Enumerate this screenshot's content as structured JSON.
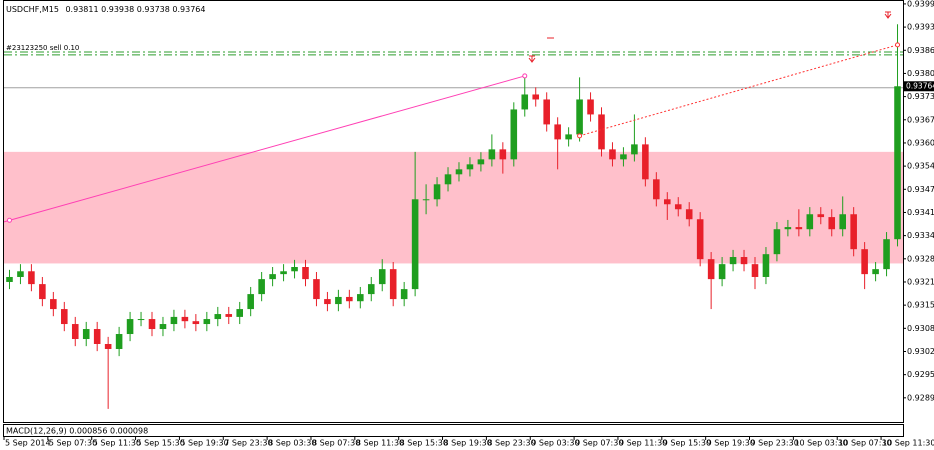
{
  "chart_data": {
    "type": "candlestick",
    "symbol": "USDCHF,M15",
    "header_values": [
      0.93811,
      0.93938,
      0.93738,
      0.93764
    ],
    "x": [
      "5 Sep 2014",
      "5 Sep 07:30",
      "5 Sep 11:30",
      "5 Sep 15:30",
      "5 Sep 19:30",
      "7 Sep 23:30",
      "8 Sep 03:30",
      "8 Sep 07:30",
      "8 Sep 11:30",
      "8 Sep 15:30",
      "8 Sep 19:30",
      "8 Sep 23:30",
      "9 Sep 03:30",
      "9 Sep 07:30",
      "9 Sep 11:30",
      "9 Sep 15:30",
      "9 Sep 19:30",
      "9 Sep 23:30",
      "10 Sep 03:30",
      "10 Sep 07:30",
      "10 Sep 11:30"
    ],
    "candles": [
      [
        0.93215,
        0.93249,
        0.93195,
        0.93229
      ],
      [
        0.93229,
        0.93265,
        0.93209,
        0.93245
      ],
      [
        0.93245,
        0.93265,
        0.93189,
        0.93209
      ],
      [
        0.93209,
        0.93229,
        0.93147,
        0.93167
      ],
      [
        0.93167,
        0.93187,
        0.93119,
        0.93139
      ],
      [
        0.93139,
        0.93159,
        0.93077,
        0.93097
      ],
      [
        0.93097,
        0.93117,
        0.93035,
        0.93055
      ],
      [
        0.93055,
        0.93103,
        0.93035,
        0.93083
      ],
      [
        0.93083,
        0.93103,
        0.93021,
        0.93041
      ],
      [
        0.93041,
        0.93061,
        0.92859,
        0.93027
      ],
      [
        0.93027,
        0.93089,
        0.93007,
        0.93069
      ],
      [
        0.93069,
        0.93131,
        0.93049,
        0.93111
      ],
      [
        0.93111,
        0.93131,
        0.93091,
        0.93111
      ],
      [
        0.93111,
        0.93131,
        0.93063,
        0.93083
      ],
      [
        0.93083,
        0.93117,
        0.93063,
        0.93097
      ],
      [
        0.93097,
        0.93137,
        0.93077,
        0.93117
      ],
      [
        0.93117,
        0.93137,
        0.93085,
        0.93105
      ],
      [
        0.93105,
        0.93125,
        0.93077,
        0.93097
      ],
      [
        0.93097,
        0.93131,
        0.93077,
        0.93111
      ],
      [
        0.93111,
        0.93145,
        0.93091,
        0.93125
      ],
      [
        0.93125,
        0.93145,
        0.93097,
        0.93117
      ],
      [
        0.93117,
        0.93159,
        0.93097,
        0.93139
      ],
      [
        0.93139,
        0.93201,
        0.93119,
        0.93181
      ],
      [
        0.93181,
        0.93243,
        0.93161,
        0.93223
      ],
      [
        0.93223,
        0.93257,
        0.93203,
        0.93237
      ],
      [
        0.93237,
        0.93265,
        0.93217,
        0.93245
      ],
      [
        0.93245,
        0.93277,
        0.93225,
        0.93257
      ],
      [
        0.93257,
        0.93277,
        0.93203,
        0.93223
      ],
      [
        0.93223,
        0.93243,
        0.93147,
        0.93167
      ],
      [
        0.93167,
        0.93187,
        0.93133,
        0.93153
      ],
      [
        0.93153,
        0.93193,
        0.93133,
        0.93173
      ],
      [
        0.93173,
        0.93193,
        0.93141,
        0.93161
      ],
      [
        0.93161,
        0.93201,
        0.93141,
        0.93181
      ],
      [
        0.93181,
        0.93229,
        0.93161,
        0.93209
      ],
      [
        0.93209,
        0.93279,
        0.93189,
        0.93251
      ],
      [
        0.93251,
        0.93271,
        0.93147,
        0.93167
      ],
      [
        0.93167,
        0.93215,
        0.93147,
        0.93195
      ],
      [
        0.93195,
        0.9358,
        0.93175,
        0.93447
      ],
      [
        0.93447,
        0.93489,
        0.93405,
        0.93447
      ],
      [
        0.93447,
        0.93509,
        0.93427,
        0.93489
      ],
      [
        0.93489,
        0.93537,
        0.93469,
        0.93517
      ],
      [
        0.93517,
        0.93551,
        0.93497,
        0.93531
      ],
      [
        0.93531,
        0.93565,
        0.93511,
        0.93545
      ],
      [
        0.93545,
        0.93579,
        0.93525,
        0.93559
      ],
      [
        0.93559,
        0.93629,
        0.93539,
        0.93587
      ],
      [
        0.93587,
        0.93607,
        0.93519,
        0.93559
      ],
      [
        0.93559,
        0.93719,
        0.93539,
        0.93699
      ],
      [
        0.93699,
        0.93797,
        0.93679,
        0.93741
      ],
      [
        0.93741,
        0.93761,
        0.93707,
        0.93727
      ],
      [
        0.93727,
        0.93747,
        0.93637,
        0.93657
      ],
      [
        0.93657,
        0.93677,
        0.93531,
        0.93615
      ],
      [
        0.93615,
        0.93649,
        0.93595,
        0.93629
      ],
      [
        0.93629,
        0.93789,
        0.93609,
        0.93727
      ],
      [
        0.93727,
        0.93747,
        0.93665,
        0.93685
      ],
      [
        0.93685,
        0.93705,
        0.93567,
        0.93587
      ],
      [
        0.93587,
        0.93607,
        0.93539,
        0.93559
      ],
      [
        0.93559,
        0.93593,
        0.93539,
        0.93573
      ],
      [
        0.93573,
        0.93685,
        0.93553,
        0.93601
      ],
      [
        0.93601,
        0.93621,
        0.93483,
        0.93503
      ],
      [
        0.93503,
        0.93523,
        0.93427,
        0.93447
      ],
      [
        0.93447,
        0.93467,
        0.93389,
        0.93433
      ],
      [
        0.93433,
        0.93453,
        0.93399,
        0.93419
      ],
      [
        0.93419,
        0.93439,
        0.93371,
        0.93391
      ],
      [
        0.93391,
        0.93411,
        0.93259,
        0.93279
      ],
      [
        0.93279,
        0.93299,
        0.93139,
        0.93223
      ],
      [
        0.93223,
        0.93285,
        0.93203,
        0.93265
      ],
      [
        0.93265,
        0.93305,
        0.93245,
        0.93285
      ],
      [
        0.93285,
        0.93305,
        0.93245,
        0.93265
      ],
      [
        0.93265,
        0.93285,
        0.93195,
        0.93229
      ],
      [
        0.93229,
        0.93313,
        0.93209,
        0.93293
      ],
      [
        0.93293,
        0.93383,
        0.93273,
        0.93363
      ],
      [
        0.93363,
        0.93389,
        0.93343,
        0.93369
      ],
      [
        0.93369,
        0.93419,
        0.93343,
        0.93363
      ],
      [
        0.93363,
        0.93425,
        0.93343,
        0.93405
      ],
      [
        0.93405,
        0.93425,
        0.93377,
        0.93397
      ],
      [
        0.93397,
        0.93419,
        0.93343,
        0.93363
      ],
      [
        0.93363,
        0.93455,
        0.93343,
        0.93405
      ],
      [
        0.93405,
        0.93425,
        0.93287,
        0.93307
      ],
      [
        0.93307,
        0.93327,
        0.93195,
        0.93237
      ],
      [
        0.93237,
        0.93271,
        0.93217,
        0.93251
      ],
      [
        0.93251,
        0.93355,
        0.93231,
        0.93335
      ],
      [
        0.93335,
        0.93938,
        0.93315,
        0.93764
      ]
    ],
    "bull_color": "#1f9e1f",
    "bear_color": "#e8202a",
    "ylim": [
      0.92825,
      0.94006
    ],
    "yticks": [
      {
        "value": 0.9289,
        "label": "0.92890"
      },
      0.92955,
      {
        "value": 0.9302,
        "label": "0.93020"
      },
      0.93085,
      {
        "value": 0.9315,
        "label": "0.93150"
      },
      0.93215,
      {
        "value": 0.9328,
        "label": "0.93280"
      },
      0.93345,
      {
        "value": 0.9341,
        "label": "0.93410"
      },
      0.93475,
      {
        "value": 0.9354,
        "label": "0.93540"
      },
      0.93605,
      {
        "value": 0.9367,
        "label": "0.93670"
      },
      0.93735,
      {
        "value": 0.938,
        "label": "0.93800"
      },
      0.93865,
      {
        "value": 0.9393,
        "label": "0.93930"
      },
      0.93995
    ],
    "current_price": 0.93764,
    "zone": {
      "range": [
        0.9358,
        0.93267
      ],
      "color": "#ffc0cb"
    },
    "levels": [
      {
        "value": 0.9386,
        "color": "#2e9e2e"
      },
      {
        "value": 0.93852,
        "color": "#2e9e2e"
      },
      {
        "value": 0.9376,
        "color": "#a0a0a0"
      }
    ],
    "trendlines": [
      {
        "points": [
          [
            0,
            0.93388
          ],
          [
            47,
            0.93793
          ]
        ],
        "color": "#ff3fb4",
        "dashed": false
      },
      {
        "points": [
          [
            52,
            0.93625
          ],
          [
            81,
            0.9388
          ]
        ],
        "color": "#ff3030",
        "dashed": true
      }
    ],
    "order_label": "#23123250 sell 0.10",
    "indicator_label": "MACD(12,26,9) 0.000856 0.000098"
  }
}
